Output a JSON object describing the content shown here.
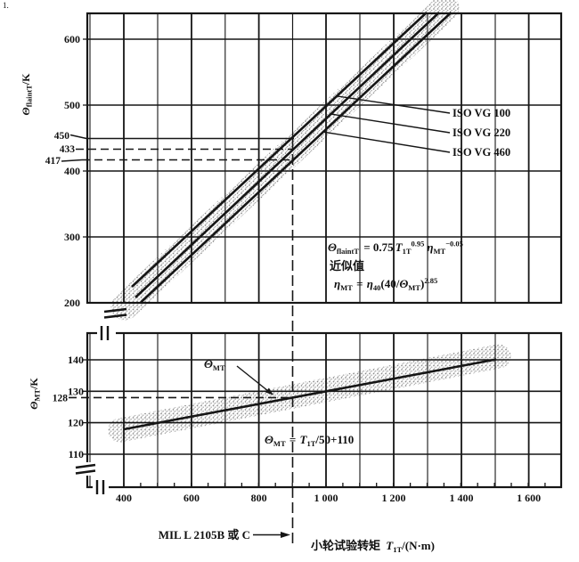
{
  "figure_fragment": "1.",
  "colors": {
    "line": "#161616",
    "band_dot": "#8a8a8a",
    "text": "#111111",
    "background": "#ffffff"
  },
  "top_plot": {
    "y_axis_label": {
      "theta": "Θ",
      "sub": "flaintT",
      "unit": "/K"
    },
    "y_ticks": [
      "600",
      "500",
      "400",
      "300",
      "200"
    ],
    "marked": {
      "v1": "450",
      "v2": "433",
      "v3": "417"
    },
    "iso_labels": [
      "ISO VG 100",
      "ISO VG 220",
      "ISO VG 460"
    ],
    "eq_flash": {
      "theta": "Θ",
      "theta_sub": "flaintT",
      "equals": " = 0.75",
      "T": "T",
      "T_sub": "1T",
      "T_sup": "0.95",
      "eta": "η",
      "eta_sub": "MT",
      "eta_sup": "−0.05"
    },
    "approx_note": "近似值",
    "eq_eta": {
      "eta": "η",
      "eta_sub": "MT",
      "equals": " = ",
      "eta40": "η",
      "eta40_sub": "40",
      "open": "(40/",
      "theta": "Θ",
      "theta_sub": "MT",
      "close": ")",
      "sup": "2.85"
    }
  },
  "bottom_plot": {
    "y_axis_label": {
      "theta": "Θ",
      "sub": "MT",
      "unit": "/K"
    },
    "y_ticks": [
      "140",
      "130",
      "120",
      "110"
    ],
    "marked": "128",
    "callout": {
      "theta": "Θ",
      "sub": "MT"
    },
    "eq_mt": {
      "theta": "Θ",
      "theta_sub": "MT",
      "equals": " = ",
      "T": "T",
      "T_sub": "1T",
      "rest": "/50+110"
    }
  },
  "x_axis": {
    "ticks": [
      "400",
      "600",
      "800",
      "1 000",
      "1 200",
      "1 400",
      "1 600"
    ],
    "label": {
      "cn": "小轮试验转矩 ",
      "T": "T",
      "T_sub": "1T",
      "unit": "/(N·m)"
    }
  },
  "annotations": {
    "mil": "MIL L 2105B 或 C"
  },
  "chart_data": [
    {
      "type": "line",
      "title": "",
      "xlabel": "小轮试验转矩 T1T/(N·m)",
      "ylabel": "Θ_flaintT/K",
      "xlim": [
        300,
        1800
      ],
      "ylim": [
        200,
        640
      ],
      "x_ticks": [
        400,
        600,
        800,
        1000,
        1200,
        1400,
        1600
      ],
      "y_ticks": [
        200,
        300,
        400,
        500,
        600
      ],
      "grid": true,
      "legend_position": "right leader labels",
      "series": [
        {
          "name": "ISO VG 100",
          "points": [
            [
              424,
              224
            ],
            [
              900,
              450
            ],
            [
              1300,
              640
            ]
          ]
        },
        {
          "name": "ISO VG 220",
          "points": [
            [
              434,
              208
            ],
            [
              900,
              433
            ],
            [
              1336,
              640
            ]
          ]
        },
        {
          "name": "ISO VG 460",
          "points": [
            [
              450,
              201
            ],
            [
              900,
              417
            ],
            [
              1372,
              640
            ]
          ]
        }
      ],
      "marked_values": {
        "T_1T": 900,
        "theta_values": [
          450,
          433,
          417
        ]
      },
      "equation": "Θ_flaintT = 0.75·T_1T^0.95·η_MT^−0.05",
      "note": "近似值: η_MT = η_40(40/Θ_MT)^2.85",
      "style": "three dark lines inside a grey stippled scatter band; dashed construction lines at T=900 giving 450/433/417 K"
    },
    {
      "type": "line",
      "xlabel": "小轮试验转矩 T1T/(N·m)",
      "ylabel": "Θ_MT/K",
      "xlim": [
        300,
        1800
      ],
      "ylim": [
        100,
        148
      ],
      "x_ticks": [
        400,
        600,
        800,
        1000,
        1200,
        1400,
        1600
      ],
      "y_ticks": [
        110,
        120,
        130,
        140
      ],
      "grid": true,
      "series": [
        {
          "name": "Θ_MT",
          "points": [
            [
              400,
              118
            ],
            [
              900,
              128
            ],
            [
              1505,
              140
            ]
          ]
        }
      ],
      "marked_values": {
        "T_1T": 900,
        "theta": 128
      },
      "equation": "Θ_MT = T_1T/50+110",
      "annotation": "MIL L 2105B 或 C → arrow at T = 900 N·m",
      "style": "dark line inside grey stippled band; axis breaks on both axes"
    }
  ]
}
